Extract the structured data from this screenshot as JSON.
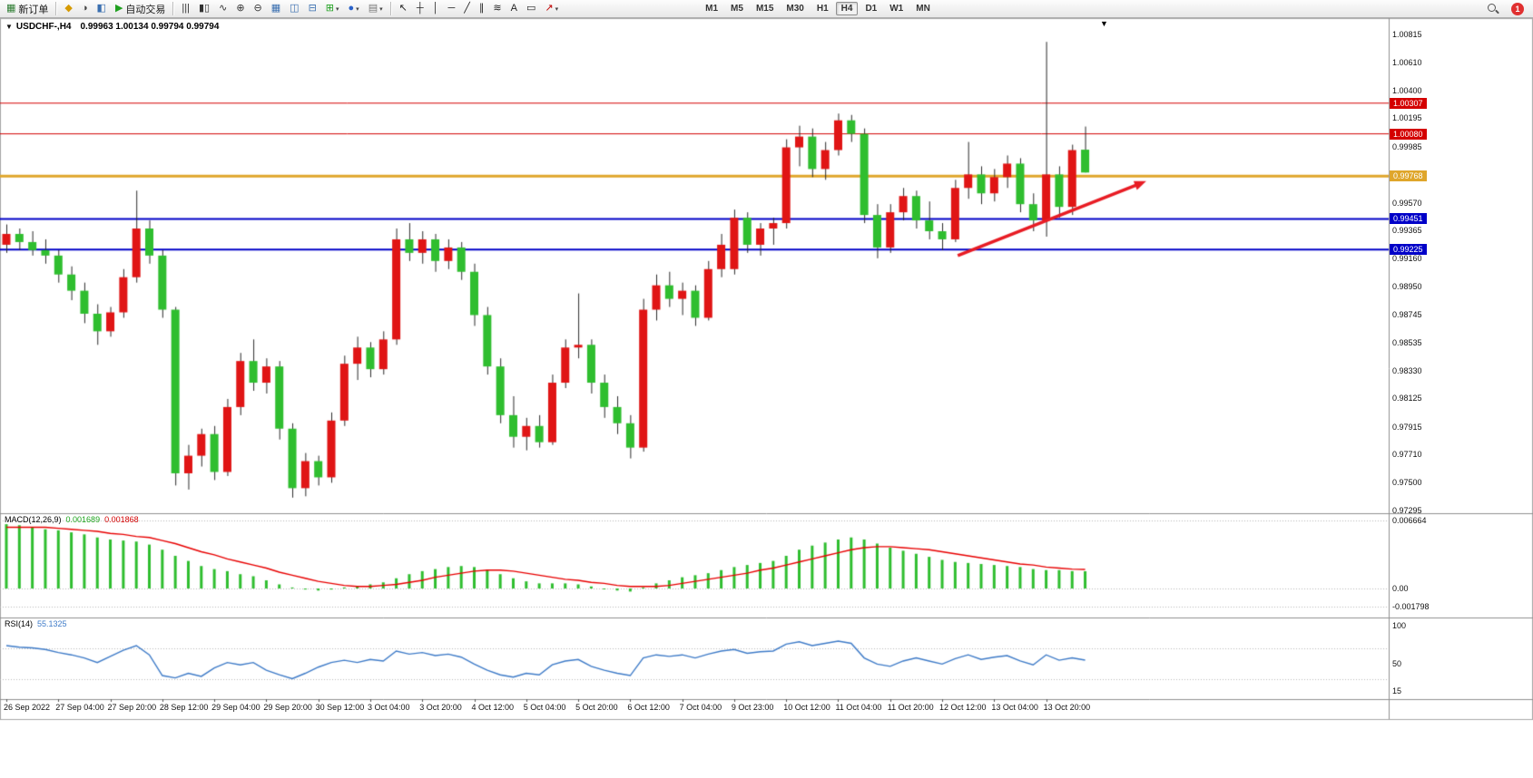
{
  "icons": {
    "collapse": "▼",
    "shift": "▼",
    "caret": "▾"
  },
  "toolbar": {
    "groups": [
      {
        "name": "order-group",
        "items": [
          {
            "name": "new-order-button",
            "glyph": "▦",
            "color": "#2e7d32",
            "label": "新订单",
            "caret": false
          }
        ]
      },
      {
        "name": "panels-group",
        "items": [
          {
            "name": "market-watch-button",
            "glyph": "◆",
            "color": "#d69a00"
          },
          {
            "name": "data-window-button",
            "glyph": "◑",
            "color": "#444444"
          },
          {
            "name": "navigator-button",
            "glyph": "◧",
            "color": "#3a6fb0"
          },
          {
            "name": "autotrading-button",
            "glyph": "▶",
            "color": "#1fa01f",
            "label": "自动交易"
          }
        ]
      },
      {
        "name": "chart-group",
        "items": [
          {
            "name": "bar-chart-button",
            "glyph": "|||",
            "color": "#333333"
          },
          {
            "name": "candlestick-button",
            "glyph": "▮▯",
            "color": "#333333"
          },
          {
            "name": "line-chart-button",
            "glyph": "∿",
            "color": "#333333"
          },
          {
            "name": "zoom-in-button",
            "glyph": "⊕",
            "color": "#333333"
          },
          {
            "name": "zoom-out-button",
            "glyph": "⊖",
            "color": "#333333"
          },
          {
            "name": "tile-windows-button",
            "glyph": "▦",
            "color": "#3a6fb0"
          },
          {
            "name": "arrange-vertical-button",
            "glyph": "◫",
            "color": "#3a6fb0"
          },
          {
            "name": "arrange-horizontal-button",
            "glyph": "⊟",
            "color": "#3a6fb0"
          },
          {
            "name": "new-chart-button",
            "glyph": "⊞",
            "color": "#1fa01f",
            "caret": true
          },
          {
            "name": "profiles-button",
            "glyph": "●",
            "color": "#2a62c9",
            "caret": true
          },
          {
            "name": "chart-wizard-button",
            "glyph": "▤",
            "color": "#777777",
            "caret": true
          }
        ]
      },
      {
        "name": "draw-group",
        "items": [
          {
            "name": "cursor-button",
            "glyph": "↖",
            "color": "#222222"
          },
          {
            "name": "crosshair-button",
            "glyph": "┼",
            "color": "#222222"
          },
          {
            "name": "vertical-line-button",
            "glyph": "│",
            "color": "#222222"
          },
          {
            "name": "horizontal-line-button",
            "glyph": "─",
            "color": "#222222"
          },
          {
            "name": "trendline-button",
            "glyph": "╱",
            "color": "#222222"
          },
          {
            "name": "channel-button",
            "glyph": "∥",
            "color": "#222222"
          },
          {
            "name": "fibonacci-button",
            "glyph": "≋",
            "color": "#222222"
          },
          {
            "name": "text-button",
            "glyph": "A",
            "color": "#222222"
          },
          {
            "name": "text-label-button",
            "glyph": "▭",
            "color": "#222222"
          },
          {
            "name": "arrow-tools-button",
            "glyph": "↗",
            "color": "#c00000",
            "caret": true
          }
        ]
      }
    ],
    "timeframes": [
      "M1",
      "M5",
      "M15",
      "M30",
      "H1",
      "H4",
      "D1",
      "W1",
      "MN"
    ],
    "active_timeframe": "H4",
    "badge": "1"
  },
  "chart_data": {
    "type": "candlestick",
    "title": "USDCHF-,H4",
    "ohlc_line": "0.99963 1.00134 0.99794 0.99794",
    "ylim": [
      0.97275,
      1.00922
    ],
    "y_axis_labels": [
      "1.00815",
      "1.00610",
      "1.00400",
      "1.00195",
      "0.99985",
      "0.99570",
      "0.99365",
      "0.99160",
      "0.98950",
      "0.98745",
      "0.98535",
      "0.98330",
      "0.98125",
      "0.97915",
      "0.97710",
      "0.97500",
      "0.97295"
    ],
    "x_axis_labels": [
      "26 Sep 2022",
      "27 Sep 04:00",
      "27 Sep 20:00",
      "28 Sep 12:00",
      "29 Sep 04:00",
      "29 Sep 20:00",
      "30 Sep 12:00",
      "3 Oct 04:00",
      "3 Oct 20:00",
      "4 Oct 12:00",
      "5 Oct 04:00",
      "5 Oct 20:00",
      "6 Oct 12:00",
      "7 Oct 04:00",
      "9 Oct 23:00",
      "10 Oct 12:00",
      "11 Oct 04:00",
      "11 Oct 20:00",
      "12 Oct 12:00",
      "13 Oct 04:00",
      "13 Oct 20:00"
    ],
    "x_label_every_n_candles": 4,
    "colors": {
      "up": "#e01515",
      "down": "#2fbe2f",
      "wick": "#2b2b2b"
    },
    "candles": [
      [
        0.9926,
        0.9941,
        0.992,
        0.9934
      ],
      [
        0.9934,
        0.9938,
        0.9922,
        0.9928
      ],
      [
        0.9928,
        0.9936,
        0.9918,
        0.9922
      ],
      [
        0.9922,
        0.993,
        0.9912,
        0.9918
      ],
      [
        0.9918,
        0.9922,
        0.9898,
        0.9904
      ],
      [
        0.9904,
        0.991,
        0.9885,
        0.9892
      ],
      [
        0.9892,
        0.9898,
        0.9868,
        0.9875
      ],
      [
        0.9875,
        0.9882,
        0.9852,
        0.9862
      ],
      [
        0.9862,
        0.988,
        0.9858,
        0.9876
      ],
      [
        0.9876,
        0.9908,
        0.9872,
        0.9902
      ],
      [
        0.9902,
        0.9966,
        0.9898,
        0.9938
      ],
      [
        0.9938,
        0.9944,
        0.9912,
        0.9918
      ],
      [
        0.9918,
        0.9922,
        0.9872,
        0.9878
      ],
      [
        0.9878,
        0.988,
        0.9748,
        0.9757
      ],
      [
        0.9757,
        0.9778,
        0.9745,
        0.977
      ],
      [
        0.977,
        0.979,
        0.9762,
        0.9786
      ],
      [
        0.9786,
        0.9792,
        0.9752,
        0.9758
      ],
      [
        0.9758,
        0.9812,
        0.9755,
        0.9806
      ],
      [
        0.9806,
        0.9846,
        0.98,
        0.984
      ],
      [
        0.984,
        0.9856,
        0.9818,
        0.9824
      ],
      [
        0.9824,
        0.9842,
        0.9816,
        0.9836
      ],
      [
        0.9836,
        0.984,
        0.9782,
        0.979
      ],
      [
        0.979,
        0.9794,
        0.9739,
        0.9746
      ],
      [
        0.9746,
        0.9772,
        0.974,
        0.9766
      ],
      [
        0.9766,
        0.977,
        0.9748,
        0.9754
      ],
      [
        0.9754,
        0.9802,
        0.975,
        0.9796
      ],
      [
        0.9796,
        0.9844,
        0.9792,
        0.9838
      ],
      [
        0.9838,
        0.9858,
        0.9826,
        0.985
      ],
      [
        0.985,
        0.9854,
        0.9828,
        0.9834
      ],
      [
        0.9834,
        0.9862,
        0.983,
        0.9856
      ],
      [
        0.9856,
        0.9938,
        0.9852,
        0.993
      ],
      [
        0.993,
        0.9942,
        0.9914,
        0.992
      ],
      [
        0.992,
        0.9936,
        0.9912,
        0.993
      ],
      [
        0.993,
        0.9934,
        0.9906,
        0.9914
      ],
      [
        0.9914,
        0.993,
        0.9908,
        0.9924
      ],
      [
        0.9924,
        0.9928,
        0.99,
        0.9906
      ],
      [
        0.9906,
        0.9912,
        0.9866,
        0.9874
      ],
      [
        0.9874,
        0.988,
        0.983,
        0.9836
      ],
      [
        0.9836,
        0.9842,
        0.9794,
        0.98
      ],
      [
        0.98,
        0.9814,
        0.9776,
        0.9784
      ],
      [
        0.9784,
        0.9798,
        0.9774,
        0.9792
      ],
      [
        0.9792,
        0.98,
        0.9776,
        0.978
      ],
      [
        0.978,
        0.983,
        0.9778,
        0.9824
      ],
      [
        0.9824,
        0.9856,
        0.982,
        0.985
      ],
      [
        0.985,
        0.989,
        0.9842,
        0.9852
      ],
      [
        0.9852,
        0.9856,
        0.9816,
        0.9824
      ],
      [
        0.9824,
        0.983,
        0.9798,
        0.9806
      ],
      [
        0.9806,
        0.9814,
        0.9786,
        0.9794
      ],
      [
        0.9794,
        0.98,
        0.9768,
        0.9776
      ],
      [
        0.9776,
        0.9886,
        0.9773,
        0.9878
      ],
      [
        0.9878,
        0.9904,
        0.987,
        0.9896
      ],
      [
        0.9896,
        0.9906,
        0.988,
        0.9886
      ],
      [
        0.9886,
        0.9898,
        0.9874,
        0.9892
      ],
      [
        0.9892,
        0.9896,
        0.9866,
        0.9872
      ],
      [
        0.9872,
        0.9914,
        0.987,
        0.9908
      ],
      [
        0.9908,
        0.9934,
        0.9902,
        0.9926
      ],
      [
        0.9908,
        0.9952,
        0.9904,
        0.9946
      ],
      [
        0.9946,
        0.995,
        0.992,
        0.9926
      ],
      [
        0.9926,
        0.9942,
        0.9918,
        0.9938
      ],
      [
        0.9938,
        0.9946,
        0.9926,
        0.9942
      ],
      [
        0.9942,
        1.0004,
        0.9938,
        0.9998
      ],
      [
        0.9998,
        1.0014,
        0.9984,
        1.0006
      ],
      [
        1.0006,
        1.0012,
        0.9976,
        0.9982
      ],
      [
        0.9982,
        1.0002,
        0.9974,
        0.9996
      ],
      [
        0.9996,
        1.0023,
        0.9992,
        1.0018
      ],
      [
        1.0018,
        1.0022,
        1.0002,
        1.0008
      ],
      [
        1.0008,
        1.0012,
        0.9942,
        0.9948
      ],
      [
        0.9948,
        0.9956,
        0.9916,
        0.9924
      ],
      [
        0.9924,
        0.9956,
        0.992,
        0.995
      ],
      [
        0.995,
        0.9968,
        0.9944,
        0.9962
      ],
      [
        0.9962,
        0.9966,
        0.9938,
        0.9944
      ],
      [
        0.9944,
        0.9958,
        0.993,
        0.9936
      ],
      [
        0.9936,
        0.9942,
        0.9922,
        0.993
      ],
      [
        0.993,
        0.9974,
        0.9928,
        0.9968
      ],
      [
        0.9968,
        1.0002,
        0.996,
        0.9978
      ],
      [
        0.9978,
        0.9984,
        0.9956,
        0.9964
      ],
      [
        0.9964,
        0.9982,
        0.9958,
        0.9976
      ],
      [
        0.9976,
        0.9992,
        0.9968,
        0.9986
      ],
      [
        0.9986,
        0.999,
        0.995,
        0.9956
      ],
      [
        0.9956,
        0.9964,
        0.9936,
        0.9944
      ],
      [
        0.9944,
        1.0076,
        0.9932,
        0.9978
      ],
      [
        0.9978,
        0.9984,
        0.9946,
        0.9954
      ],
      [
        0.9954,
        1.0,
        0.9948,
        0.9996
      ],
      [
        0.99963,
        1.00134,
        0.99794,
        0.99794
      ]
    ],
    "hlines": [
      {
        "price": 1.00307,
        "label": "1.00307",
        "color": "#d40000",
        "width": 1
      },
      {
        "price": 1.0008,
        "label": "1.00080",
        "color": "#d40000",
        "width": 1
      },
      {
        "price": 0.99768,
        "label": "0.99768",
        "color": "#dfa62b",
        "width": 3
      },
      {
        "price": 0.99451,
        "label": "0.99451",
        "color": "#0000c8",
        "width": 2
      },
      {
        "price": 0.99225,
        "label": "0.99225",
        "color": "#0000c8",
        "width": 2
      }
    ],
    "trend_arrow": {
      "from_candle": 73.2,
      "from_price": 0.9918,
      "to_candle": 87.7,
      "to_price": 0.9973,
      "color": "#e81c24"
    },
    "indicators": [
      {
        "name": "MACD",
        "label": "MACD(12,26,9)",
        "display_main": "0.001689",
        "display_signal": "0.001868",
        "axis_labels": [
          "0.006664",
          "0.00",
          "-0.001798"
        ],
        "axis_values": [
          0.006664,
          0,
          -0.001798
        ],
        "hist_color": "#2fbe2f",
        "signal_color": "#e80000",
        "histogram": [
          0.0063,
          0.0062,
          0.006,
          0.0058,
          0.0057,
          0.0055,
          0.0053,
          0.005,
          0.0048,
          0.0047,
          0.0046,
          0.0043,
          0.0038,
          0.0032,
          0.0027,
          0.0022,
          0.0019,
          0.0017,
          0.0014,
          0.0012,
          0.0008,
          0.0004,
          0.0001,
          -0.0001,
          -0.0002,
          -0.0001,
          0.0001,
          0.0002,
          0.0004,
          0.0006,
          0.001,
          0.0014,
          0.0017,
          0.0019,
          0.0021,
          0.0022,
          0.0021,
          0.0018,
          0.0014,
          0.001,
          0.0007,
          0.0005,
          0.0005,
          0.0005,
          0.0004,
          0.0002,
          0.0,
          -0.0002,
          -0.0003,
          0.0001,
          0.0005,
          0.0008,
          0.0011,
          0.0013,
          0.0015,
          0.0018,
          0.0021,
          0.0023,
          0.0025,
          0.0027,
          0.0032,
          0.0038,
          0.0042,
          0.0045,
          0.0048,
          0.005,
          0.0048,
          0.0044,
          0.004,
          0.0037,
          0.0034,
          0.0031,
          0.0028,
          0.0026,
          0.0025,
          0.0024,
          0.0023,
          0.0022,
          0.0021,
          0.0019,
          0.0018,
          0.0018,
          0.0017,
          0.001689
        ],
        "signal": [
          0.006,
          0.006,
          0.006,
          0.006,
          0.0059,
          0.0058,
          0.0057,
          0.0056,
          0.0054,
          0.0053,
          0.0051,
          0.005,
          0.0047,
          0.0044,
          0.004,
          0.0036,
          0.0033,
          0.0029,
          0.0026,
          0.0023,
          0.002,
          0.0016,
          0.0013,
          0.001,
          0.0007,
          0.0005,
          0.0003,
          0.0002,
          0.0002,
          0.0003,
          0.0004,
          0.0006,
          0.0008,
          0.0011,
          0.0013,
          0.0015,
          0.0017,
          0.0018,
          0.0018,
          0.0017,
          0.0015,
          0.0013,
          0.0011,
          0.0009,
          0.0008,
          0.0006,
          0.0005,
          0.0003,
          0.0002,
          0.0002,
          0.0002,
          0.0003,
          0.0005,
          0.0007,
          0.0009,
          0.0011,
          0.0013,
          0.0015,
          0.0018,
          0.002,
          0.0023,
          0.0026,
          0.0029,
          0.0032,
          0.0035,
          0.0038,
          0.004,
          0.0041,
          0.0041,
          0.004,
          0.0039,
          0.0038,
          0.0036,
          0.0034,
          0.0032,
          0.003,
          0.0028,
          0.0026,
          0.0024,
          0.0023,
          0.0021,
          0.002,
          0.0019,
          0.001868
        ]
      },
      {
        "name": "RSI",
        "label": "RSI(14)",
        "display_value": "55.1325",
        "axis_labels": [
          "100",
          "50",
          "15"
        ],
        "axis_values": [
          100,
          50,
          15
        ],
        "levels": [
          70,
          30
        ],
        "line_color": "#3e7bc8",
        "values": [
          74,
          72,
          71,
          69,
          65,
          62,
          58,
          52,
          60,
          68,
          74,
          62,
          35,
          32,
          38,
          34,
          45,
          52,
          49,
          52,
          42,
          36,
          31,
          38,
          46,
          52,
          55,
          52,
          56,
          54,
          67,
          63,
          65,
          61,
          63,
          59,
          50,
          42,
          36,
          33,
          38,
          36,
          49,
          54,
          56,
          47,
          42,
          38,
          35,
          58,
          62,
          60,
          62,
          58,
          63,
          67,
          69,
          64,
          66,
          67,
          76,
          79,
          74,
          77,
          80,
          77,
          58,
          50,
          47,
          54,
          58,
          54,
          50,
          57,
          62,
          56,
          59,
          61,
          54,
          49,
          62,
          55,
          58,
          55.13
        ]
      }
    ]
  }
}
